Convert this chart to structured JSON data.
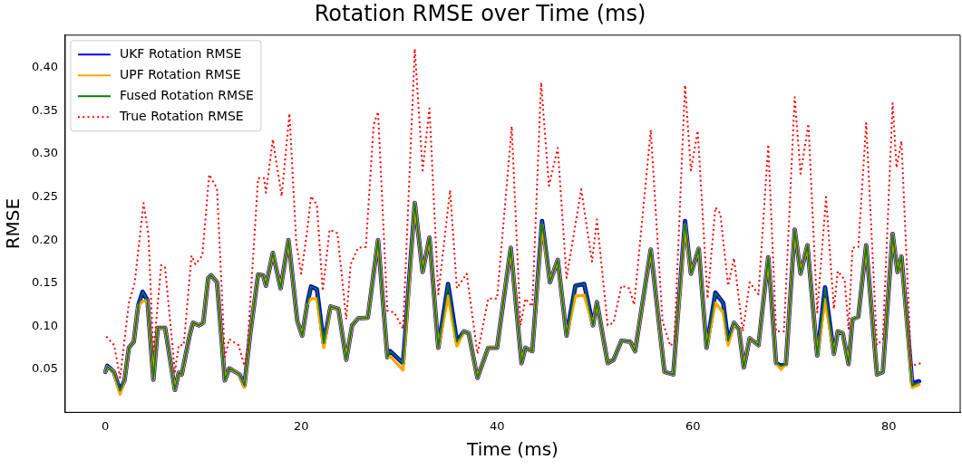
{
  "chart_data": {
    "type": "line",
    "title": "Rotation RMSE over Time (ms)",
    "xlabel": "Time (ms)",
    "ylabel": "RMSE",
    "x": [
      0,
      0.2,
      0.87,
      1.5,
      1.95,
      2.4,
      2.9,
      3.35,
      3.8,
      4.3,
      4.9,
      5.35,
      6.1,
      7.1,
      7.5,
      7.8,
      8.6,
      8.95,
      9.55,
      10.0,
      10.5,
      10.8,
      11.4,
      12.2,
      12.65,
      13.7,
      14.2,
      14.8,
      15.6,
      16.1,
      16.4,
      17.1,
      17.9,
      18.7,
      19.6,
      20.1,
      20.6,
      21.0,
      21.6,
      22.3,
      23.0,
      23.8,
      24.6,
      25.2,
      25.8,
      26.8,
      27.85,
      28.8,
      29.1,
      30.4,
      31.6,
      32.4,
      33.1,
      34.0,
      35.0,
      35.9,
      36.6,
      37.1,
      38.0,
      39.1,
      40.0,
      41.4,
      42.5,
      42.9,
      43.6,
      44.6,
      45.4,
      46.2,
      47.1,
      48.0,
      48.9,
      49.8,
      50.2,
      51.3,
      51.9,
      52.7,
      53.6,
      54.1,
      55.7,
      57.1,
      58.0,
      59.2,
      59.8,
      60.6,
      61.4,
      62.3,
      63.1,
      63.6,
      64.2,
      64.7,
      65.2,
      65.8,
      66.7,
      67.7,
      68.5,
      69.0,
      69.5,
      70.4,
      71.0,
      71.7,
      72.7,
      73.5,
      74.4,
      74.8,
      75.3,
      75.9,
      76.3,
      76.9,
      77.7,
      78.8,
      79.4,
      80.4,
      80.9,
      81.3,
      82.4,
      83.1
    ],
    "series": [
      {
        "name": "UKF Rotation RMSE",
        "color": "#0000ff",
        "values": [
          0.047,
          0.054,
          0.047,
          0.025,
          0.037,
          0.075,
          0.082,
          0.124,
          0.14,
          0.13,
          0.038,
          0.098,
          0.098,
          0.026,
          0.046,
          0.044,
          0.089,
          0.104,
          0.101,
          0.104,
          0.156,
          0.159,
          0.151,
          0.037,
          0.051,
          0.044,
          0.031,
          0.092,
          0.16,
          0.159,
          0.147,
          0.185,
          0.144,
          0.2,
          0.106,
          0.089,
          0.125,
          0.146,
          0.143,
          0.08,
          0.123,
          0.12,
          0.061,
          0.101,
          0.109,
          0.11,
          0.2,
          0.064,
          0.071,
          0.057,
          0.243,
          0.163,
          0.203,
          0.075,
          0.149,
          0.082,
          0.094,
          0.092,
          0.04,
          0.075,
          0.075,
          0.191,
          0.057,
          0.075,
          0.071,
          0.222,
          0.151,
          0.177,
          0.089,
          0.147,
          0.149,
          0.101,
          0.128,
          0.057,
          0.061,
          0.083,
          0.082,
          0.071,
          0.189,
          0.047,
          0.044,
          0.222,
          0.161,
          0.19,
          0.075,
          0.139,
          0.127,
          0.083,
          0.104,
          0.097,
          0.052,
          0.086,
          0.078,
          0.18,
          0.057,
          0.054,
          0.056,
          0.212,
          0.161,
          0.194,
          0.066,
          0.145,
          0.068,
          0.094,
          0.092,
          0.056,
          0.108,
          0.111,
          0.194,
          0.044,
          0.047,
          0.207,
          0.163,
          0.181,
          0.034,
          0.036
        ]
      },
      {
        "name": "UPF Rotation RMSE",
        "color": "#ffa500",
        "values": [
          0.047,
          0.053,
          0.047,
          0.021,
          0.037,
          0.075,
          0.082,
          0.124,
          0.129,
          0.13,
          0.038,
          0.098,
          0.098,
          0.026,
          0.046,
          0.044,
          0.089,
          0.104,
          0.101,
          0.104,
          0.156,
          0.159,
          0.151,
          0.037,
          0.051,
          0.044,
          0.029,
          0.092,
          0.16,
          0.159,
          0.147,
          0.185,
          0.144,
          0.2,
          0.106,
          0.089,
          0.125,
          0.132,
          0.132,
          0.075,
          0.123,
          0.12,
          0.061,
          0.101,
          0.109,
          0.11,
          0.2,
          0.064,
          0.065,
          0.049,
          0.243,
          0.163,
          0.203,
          0.075,
          0.135,
          0.077,
          0.094,
          0.092,
          0.04,
          0.075,
          0.075,
          0.191,
          0.057,
          0.075,
          0.071,
          0.218,
          0.151,
          0.177,
          0.089,
          0.135,
          0.136,
          0.101,
          0.128,
          0.057,
          0.061,
          0.083,
          0.082,
          0.071,
          0.189,
          0.047,
          0.044,
          0.218,
          0.161,
          0.19,
          0.075,
          0.127,
          0.116,
          0.078,
          0.104,
          0.097,
          0.052,
          0.086,
          0.078,
          0.18,
          0.057,
          0.05,
          0.056,
          0.212,
          0.161,
          0.194,
          0.066,
          0.131,
          0.068,
          0.094,
          0.092,
          0.056,
          0.108,
          0.111,
          0.194,
          0.044,
          0.047,
          0.207,
          0.163,
          0.181,
          0.029,
          0.032
        ]
      },
      {
        "name": "Fused Rotation RMSE",
        "color": "#008000",
        "values": [
          0.047,
          0.053,
          0.047,
          0.025,
          0.037,
          0.075,
          0.082,
          0.124,
          0.14,
          0.13,
          0.038,
          0.098,
          0.098,
          0.026,
          0.046,
          0.044,
          0.089,
          0.104,
          0.101,
          0.104,
          0.156,
          0.159,
          0.151,
          0.037,
          0.051,
          0.044,
          0.031,
          0.092,
          0.16,
          0.159,
          0.147,
          0.185,
          0.144,
          0.2,
          0.106,
          0.089,
          0.125,
          0.146,
          0.143,
          0.08,
          0.123,
          0.12,
          0.061,
          0.101,
          0.109,
          0.11,
          0.2,
          0.064,
          0.071,
          0.057,
          0.243,
          0.163,
          0.203,
          0.075,
          0.149,
          0.082,
          0.094,
          0.092,
          0.04,
          0.075,
          0.075,
          0.191,
          0.057,
          0.075,
          0.071,
          0.222,
          0.151,
          0.177,
          0.089,
          0.147,
          0.149,
          0.101,
          0.128,
          0.057,
          0.061,
          0.083,
          0.082,
          0.071,
          0.189,
          0.047,
          0.044,
          0.222,
          0.161,
          0.19,
          0.075,
          0.139,
          0.127,
          0.083,
          0.104,
          0.097,
          0.052,
          0.086,
          0.078,
          0.18,
          0.057,
          0.054,
          0.056,
          0.212,
          0.161,
          0.194,
          0.066,
          0.145,
          0.068,
          0.094,
          0.092,
          0.056,
          0.108,
          0.111,
          0.194,
          0.044,
          0.047,
          0.207,
          0.163,
          0.181,
          0.031,
          0.035
        ]
      },
      {
        "name": "True Rotation RMSE",
        "color": "#ff0000",
        "line_style": "dotted",
        "x": [
          0.1,
          0.9,
          1.5,
          2.4,
          3.0,
          3.9,
          4.4,
          4.9,
          5.7,
          6.1,
          7.1,
          7.5,
          8.0,
          8.8,
          9.2,
          9.9,
          10.6,
          11.4,
          12.2,
          12.65,
          13.6,
          14.2,
          14.5,
          15.6,
          16.2,
          16.4,
          17.1,
          18.0,
          18.8,
          19.5,
          20.0,
          20.6,
          21.0,
          21.6,
          22.2,
          22.9,
          23.7,
          24.6,
          25.05,
          25.8,
          26.6,
          27.4,
          27.85,
          28.8,
          29.5,
          30.4,
          31.6,
          32.4,
          33.1,
          34.0,
          35.2,
          35.9,
          36.9,
          38.0,
          39.1,
          40.0,
          41.5,
          42.4,
          42.9,
          43.6,
          44.5,
          45.3,
          46.2,
          47.1,
          48.6,
          49.7,
          50.2,
          51.3,
          51.9,
          52.7,
          53.5,
          54.0,
          55.7,
          56.9,
          57.7,
          58.1,
          59.2,
          59.8,
          60.5,
          61.5,
          62.3,
          62.8,
          63.6,
          64.2,
          65.1,
          65.8,
          66.7,
          67.7,
          68.5,
          69.3,
          70.4,
          71.0,
          71.8,
          72.7,
          73.6,
          74.4,
          74.8,
          75.5,
          75.9,
          76.3,
          76.9,
          77.7,
          78.8,
          79.4,
          80.4,
          80.8,
          81.3,
          82.3,
          83.3
        ],
        "values": [
          0.088,
          0.078,
          0.04,
          0.127,
          0.151,
          0.243,
          0.206,
          0.068,
          0.171,
          0.168,
          0.047,
          0.078,
          0.078,
          0.182,
          0.172,
          0.182,
          0.276,
          0.26,
          0.064,
          0.085,
          0.078,
          0.054,
          0.075,
          0.272,
          0.272,
          0.255,
          0.317,
          0.251,
          0.347,
          0.196,
          0.161,
          0.21,
          0.251,
          0.241,
          0.141,
          0.212,
          0.208,
          0.108,
          0.172,
          0.191,
          0.192,
          0.334,
          0.349,
          0.118,
          0.116,
          0.097,
          0.422,
          0.281,
          0.353,
          0.137,
          0.258,
          0.144,
          0.161,
          0.068,
          0.132,
          0.132,
          0.332,
          0.101,
          0.132,
          0.123,
          0.383,
          0.263,
          0.307,
          0.156,
          0.259,
          0.175,
          0.224,
          0.101,
          0.104,
          0.147,
          0.144,
          0.125,
          0.328,
          0.106,
          0.077,
          0.082,
          0.38,
          0.281,
          0.327,
          0.132,
          0.238,
          0.231,
          0.147,
          0.179,
          0.094,
          0.151,
          0.137,
          0.311,
          0.094,
          0.094,
          0.366,
          0.277,
          0.335,
          0.116,
          0.25,
          0.12,
          0.164,
          0.154,
          0.097,
          0.191,
          0.192,
          0.336,
          0.078,
          0.085,
          0.359,
          0.284,
          0.315,
          0.054,
          0.057
        ]
      }
    ],
    "xlim": [
      -4.1,
      87.3
    ],
    "xticks": [
      0,
      20,
      40,
      60,
      80
    ],
    "ylim": [
      0.0,
      0.438
    ],
    "yticks": [
      {
        "value": 0.05,
        "label": "0.05"
      },
      {
        "value": 0.1,
        "label": "0.10"
      },
      {
        "value": 0.15,
        "label": "0.15"
      },
      {
        "value": 0.2,
        "label": "0.20"
      },
      {
        "value": 0.25,
        "label": "0.25"
      },
      {
        "value": 0.3,
        "label": "0.30"
      },
      {
        "value": 0.35,
        "label": "0.35"
      },
      {
        "value": 0.4,
        "label": "0.40"
      }
    ],
    "grid": false,
    "legend": "top left",
    "marker": "none",
    "line_style": "solid"
  }
}
